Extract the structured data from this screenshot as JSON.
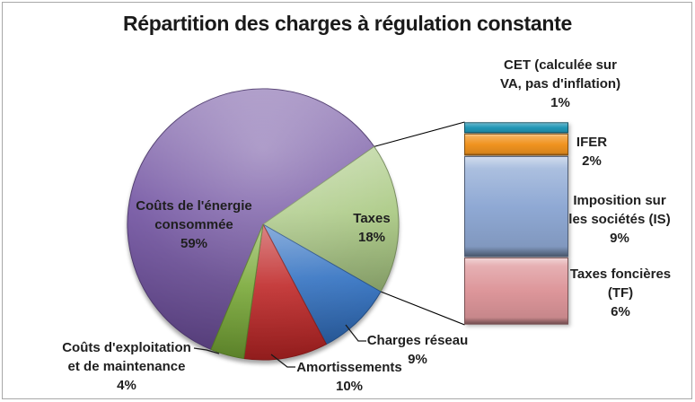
{
  "title": "Répartition des charges à régulation constante",
  "chart_data": {
    "type": "pie",
    "subtype": "pie-of-pie",
    "title": "Répartition des charges à régulation constante",
    "legend": "none",
    "pie_start_angle_deg": 202.6,
    "pie_series": [
      {
        "id": "energie",
        "label": "Coûts de l'énergie consommée",
        "value_pct": 59,
        "color": "#6E4F9F"
      },
      {
        "id": "taxes",
        "label": "Taxes",
        "value_pct": 18,
        "color": "#A6C77E",
        "breakdown": true
      },
      {
        "id": "charges_reseau",
        "label": "Charges réseau",
        "value_pct": 9,
        "color": "#2F6FC0"
      },
      {
        "id": "amortissements",
        "label": "Amortissements",
        "value_pct": 10,
        "color": "#BE2424"
      },
      {
        "id": "exploitation",
        "label": "Coûts d'exploitation et de maintenance",
        "value_pct": 4,
        "color": "#77A834"
      }
    ],
    "bar_breakdown_of": "Taxes",
    "bar_series": [
      {
        "id": "cet",
        "label": "CET (calculée sur VA, pas d'inflation)",
        "value_pct": 1,
        "color": "#2196B5"
      },
      {
        "id": "ifer",
        "label": "IFER",
        "value_pct": 2,
        "color": "#F0931F"
      },
      {
        "id": "is",
        "label": "Imposition sur les sociétés (IS)",
        "value_pct": 9,
        "color": "#8FA9D4"
      },
      {
        "id": "tf",
        "label": "Taxes foncières (TF)",
        "value_pct": 6,
        "color": "#DD969A"
      }
    ]
  },
  "labels": {
    "energie": {
      "l1": "Coûts de l'énergie",
      "l2": "consommée",
      "l3": "59%"
    },
    "taxes": {
      "l1": "Taxes",
      "l2": "18%"
    },
    "charges_reseau": {
      "l1": "Charges réseau",
      "l2": "9%"
    },
    "amortissements": {
      "l1": "Amortissements",
      "l2": "10%"
    },
    "exploitation": {
      "l1": "Coûts d'exploitation",
      "l2": "et de maintenance",
      "l3": "4%"
    },
    "cet": {
      "l1": "CET (calculée sur",
      "l2": "VA, pas d'inflation)",
      "l3": "1%"
    },
    "ifer": {
      "l1": "IFER",
      "l2": "2%"
    },
    "is": {
      "l1": "Imposition sur",
      "l2": "les sociétés (IS)",
      "l3": "9%"
    },
    "tf": {
      "l1": "Taxes foncières",
      "l2": "(TF)",
      "l3": "6%"
    }
  }
}
